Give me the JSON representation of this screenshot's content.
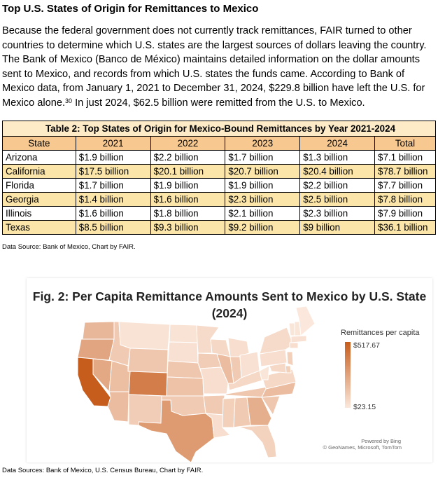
{
  "heading": "Top U.S. States of Origin for Remittances to Mexico",
  "paragraph": {
    "text_main": "Because the federal government does not currently track remittances, FAIR turned to other countries to determine which U.S. states are the largest sources of dollars leaving the country. The Bank of Mexico (Banco de México) maintains detailed information on the dollar amounts sent to Mexico, and records from which U.S. states the funds came. According to Bank of Mexico data, from January 1, 2021 to December 31, 2024, $229.8 billion have left the U.S. for Mexico alone.",
    "footnote_ref": "30",
    "text_tail": " In just 2024, $62.5 billion were remitted from the U.S. to Mexico."
  },
  "table": {
    "caption": "Table 2: Top States of Origin for Mexico-Bound Remittances by Year 2021-2024",
    "headers": [
      "State",
      "2021",
      "2022",
      "2023",
      "2024",
      "Total"
    ],
    "rows": [
      {
        "state": "Arizona",
        "y2021": "$1.9 billion",
        "y2022": "$2.2 billion",
        "y2023": "$1.7 billion",
        "y2024": "$1.3 billion",
        "total": "$7.1 billion"
      },
      {
        "state": "California",
        "y2021": "$17.5 billion",
        "y2022": "$20.1 billion",
        "y2023": "$20.7 billion",
        "y2024": "$20.4 billion",
        "total": "$78.7 billion"
      },
      {
        "state": "Florida",
        "y2021": "$1.7 billion",
        "y2022": "$1.9 billion",
        "y2023": "$1.9 billion",
        "y2024": "$2.2 billion",
        "total": "$7.7 billion"
      },
      {
        "state": "Georgia",
        "y2021": "$1.4 billion",
        "y2022": "$1.6 billion",
        "y2023": "$2.3 billion",
        "y2024": "$2.5 billion",
        "total": "$7.8 billion"
      },
      {
        "state": "Illinois",
        "y2021": "$1.6 billion",
        "y2022": "$1.8 billion",
        "y2023": "$2.1 billion",
        "y2024": "$2.3 billion",
        "total": "$7.9 billion"
      },
      {
        "state": "Texas",
        "y2021": "$8.5 billion",
        "y2022": "$9.3 billion",
        "y2023": "$9.2 billion",
        "y2024": "$9 billion",
        "total": "$36.1 billion"
      }
    ],
    "source": "Data Source: Bank of Mexico, Chart by FAIR."
  },
  "figure": {
    "title_line1": "Fig. 2: Per Capita Remittance Amounts Sent to Mexico by U.S. State",
    "title_line2": "(2024)",
    "legend_title": "Remittances per capita",
    "legend_max": "$517.67",
    "legend_min": "$23.15",
    "powered_by": "Powered by Bing",
    "attribution": "© GeoNames, Microsoft, TomTom",
    "colors": {
      "high": "#c75d1d",
      "low": "#fbe8dc"
    }
  },
  "chart_data": {
    "type": "choropleth",
    "title": "Fig. 2: Per Capita Remittance Amounts Sent to Mexico by U.S. State (2024)",
    "legend": "Remittances per capita",
    "range": [
      23.15,
      517.67
    ],
    "range_labels": [
      "$23.15",
      "$517.67"
    ],
    "regions": [
      {
        "name": "WA",
        "v": 200
      },
      {
        "name": "OR",
        "v": 260
      },
      {
        "name": "CA",
        "v": 517.67
      },
      {
        "name": "NV",
        "v": 250
      },
      {
        "name": "ID",
        "v": 130
      },
      {
        "name": "MT",
        "v": 40
      },
      {
        "name": "WY",
        "v": 140
      },
      {
        "name": "UT",
        "v": 170
      },
      {
        "name": "AZ",
        "v": 180
      },
      {
        "name": "CO",
        "v": 400
      },
      {
        "name": "NM",
        "v": 120
      },
      {
        "name": "ND",
        "v": 40
      },
      {
        "name": "SD",
        "v": 50
      },
      {
        "name": "NE",
        "v": 140
      },
      {
        "name": "KS",
        "v": 160
      },
      {
        "name": "OK",
        "v": 130
      },
      {
        "name": "TX",
        "v": 300
      },
      {
        "name": "MN",
        "v": 70
      },
      {
        "name": "IA",
        "v": 120
      },
      {
        "name": "MO",
        "v": 60
      },
      {
        "name": "AR",
        "v": 130
      },
      {
        "name": "LA",
        "v": 60
      },
      {
        "name": "WI",
        "v": 80
      },
      {
        "name": "IL",
        "v": 180
      },
      {
        "name": "MI",
        "v": 60
      },
      {
        "name": "IN",
        "v": 130
      },
      {
        "name": "OH",
        "v": 50
      },
      {
        "name": "KY",
        "v": 80
      },
      {
        "name": "TN",
        "v": 140
      },
      {
        "name": "MS",
        "v": 110
      },
      {
        "name": "AL",
        "v": 130
      },
      {
        "name": "GA",
        "v": 230
      },
      {
        "name": "FL",
        "v": 100
      },
      {
        "name": "SC",
        "v": 140
      },
      {
        "name": "NC",
        "v": 180
      },
      {
        "name": "VA",
        "v": 80
      },
      {
        "name": "WV",
        "v": 30
      },
      {
        "name": "PA",
        "v": 60
      },
      {
        "name": "NY",
        "v": 70
      },
      {
        "name": "VT",
        "v": 30
      },
      {
        "name": "NH",
        "v": 30
      },
      {
        "name": "ME",
        "v": 25
      },
      {
        "name": "MA",
        "v": 50
      },
      {
        "name": "CT",
        "v": 60
      },
      {
        "name": "NJ",
        "v": 110
      },
      {
        "name": "DE",
        "v": 110
      },
      {
        "name": "MD",
        "v": 80
      }
    ]
  },
  "footer_source": "Data Sources: Bank of Mexico, U.S. Census Bureau, Chart by FAIR."
}
